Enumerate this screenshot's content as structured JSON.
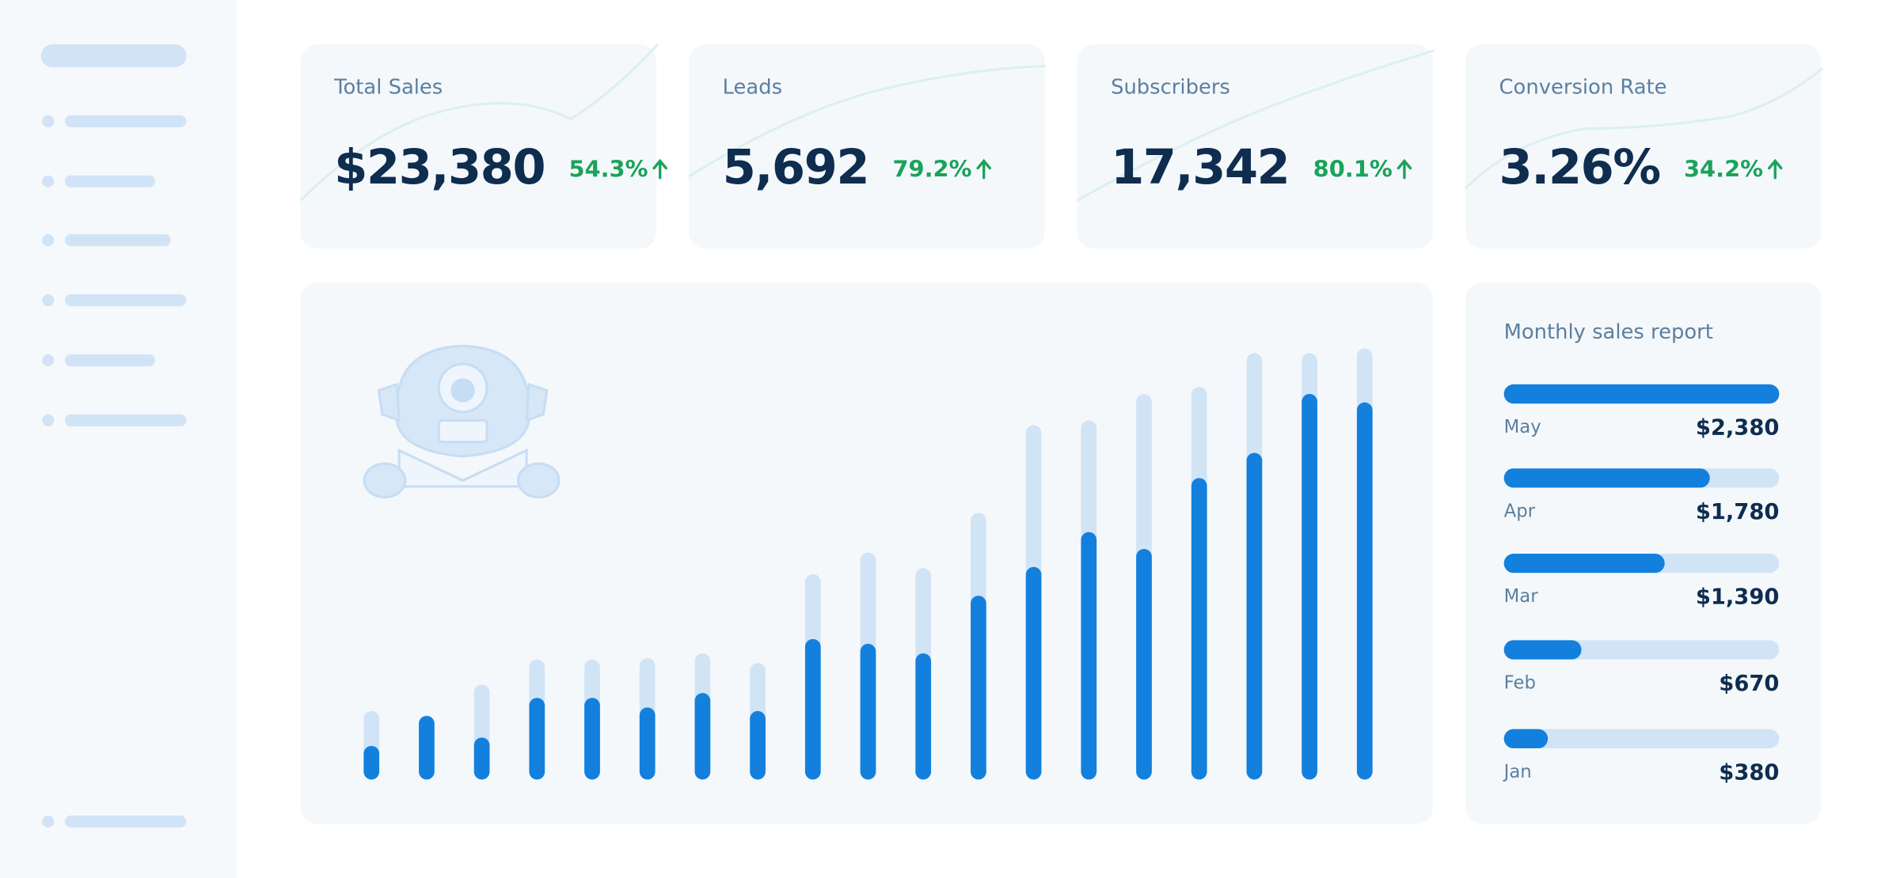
{
  "kpis": [
    {
      "title": "Total Sales",
      "value": "$23,380",
      "change": "54.3%"
    },
    {
      "title": "Leads",
      "value": "5,692",
      "change": "79.2%"
    },
    {
      "title": "Subscribers",
      "value": "17,342",
      "change": "80.1%"
    },
    {
      "title": "Conversion Rate",
      "value": "3.26%",
      "change": "34.2%"
    }
  ],
  "chart": {
    "type": "bar",
    "series": [
      {
        "color": "#d1e4f6",
        "values": [
          57,
          53,
          79,
          100,
          100,
          101,
          105,
          97,
          171,
          189,
          176,
          222,
          295,
          299,
          321,
          327,
          355,
          355,
          359
        ]
      },
      {
        "color": "#1380dd",
        "values": [
          28,
          53,
          35,
          68,
          68,
          60,
          72,
          57,
          117,
          113,
          105,
          153,
          177,
          206,
          192,
          251,
          272,
          321,
          314
        ]
      }
    ]
  },
  "report": {
    "title": "Monthly sales report",
    "color": "#1380dd",
    "track_color": "#d1e4f6",
    "rows": [
      {
        "month": "May",
        "value": 2380,
        "label": "$2,380"
      },
      {
        "month": "Apr",
        "value": 1780,
        "label": "$1,780"
      },
      {
        "month": "Mar",
        "value": 1390,
        "label": "$1,390"
      },
      {
        "month": "Feb",
        "value": 670,
        "label": "$670"
      },
      {
        "month": "Jan",
        "value": 380,
        "label": "$380"
      }
    ]
  }
}
